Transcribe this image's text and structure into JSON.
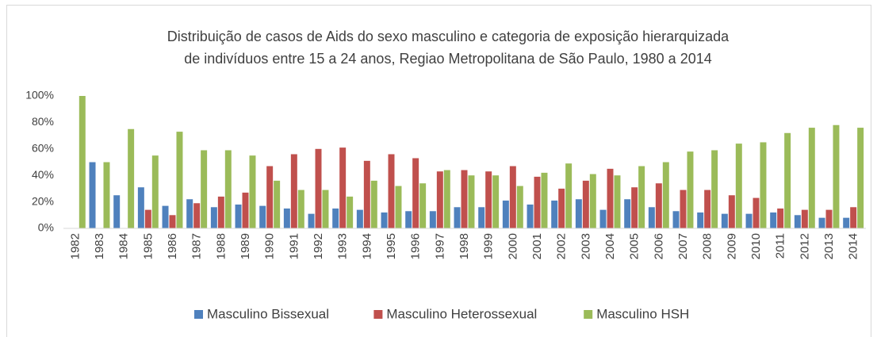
{
  "chart_data": {
    "type": "bar",
    "title": [
      "Distribuição de casos de Aids do sexo masculino e categoria de exposição hierarquizada",
      "de indivíduos entre 15 a 24 anos, Regiao Metropolitana de São Paulo, 1980 a 2014"
    ],
    "categories": [
      "1982",
      "1983",
      "1984",
      "1985",
      "1986",
      "1987",
      "1988",
      "1989",
      "1990",
      "1991",
      "1992",
      "1993",
      "1994",
      "1995",
      "1996",
      "1997",
      "1998",
      "1999",
      "2000",
      "2001",
      "2002",
      "2003",
      "2004",
      "2005",
      "2006",
      "2007",
      "2008",
      "2009",
      "2010",
      "2011",
      "2012",
      "2013",
      "2014"
    ],
    "series": [
      {
        "name": "Masculino Bissexual",
        "color": "#4f81bd",
        "values": [
          0,
          50,
          25,
          31,
          17,
          22,
          16,
          18,
          17,
          15,
          11,
          15,
          14,
          12,
          13,
          13,
          16,
          16,
          21,
          18,
          21,
          22,
          14,
          22,
          16,
          13,
          12,
          11,
          11,
          12,
          10,
          8,
          8
        ]
      },
      {
        "name": "Masculino Heterossexual",
        "color": "#c0504d",
        "values": [
          0,
          0,
          0,
          14,
          10,
          19,
          24,
          27,
          47,
          56,
          60,
          61,
          51,
          56,
          53,
          43,
          44,
          43,
          47,
          39,
          30,
          36,
          45,
          31,
          34,
          29,
          29,
          25,
          23,
          15,
          14,
          14,
          16
        ]
      },
      {
        "name": "Masculino HSH",
        "color": "#9bbb59",
        "values": [
          100,
          50,
          75,
          55,
          73,
          59,
          59,
          55,
          36,
          29,
          29,
          24,
          36,
          32,
          34,
          44,
          40,
          40,
          32,
          42,
          49,
          41,
          40,
          47,
          50,
          58,
          59,
          64,
          65,
          72,
          76,
          78,
          76
        ]
      }
    ],
    "ylim": [
      0,
      100
    ],
    "yticks": [
      {
        "value": 0,
        "label": "0%"
      },
      {
        "value": 20,
        "label": "20%"
      },
      {
        "value": 40,
        "label": "40%"
      },
      {
        "value": 60,
        "label": "60%"
      },
      {
        "value": 80,
        "label": "80%"
      },
      {
        "value": 100,
        "label": "100%"
      }
    ],
    "grid": false,
    "legend": "bottom"
  }
}
